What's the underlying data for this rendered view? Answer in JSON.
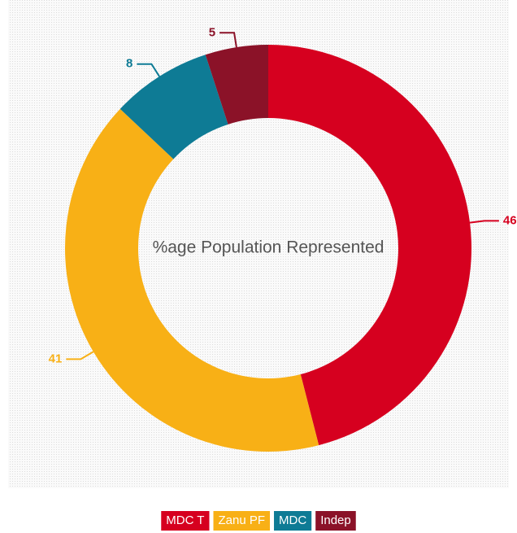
{
  "chart_data": {
    "type": "donut",
    "title": "%age Population Represented",
    "categories": [
      "MDC T",
      "Zanu PF",
      "MDC",
      "Indep"
    ],
    "values": [
      46,
      41,
      8,
      5
    ],
    "colors": [
      "#d6001f",
      "#f8b016",
      "#0e7b95",
      "#8b1228"
    ],
    "legend": "bottom"
  }
}
